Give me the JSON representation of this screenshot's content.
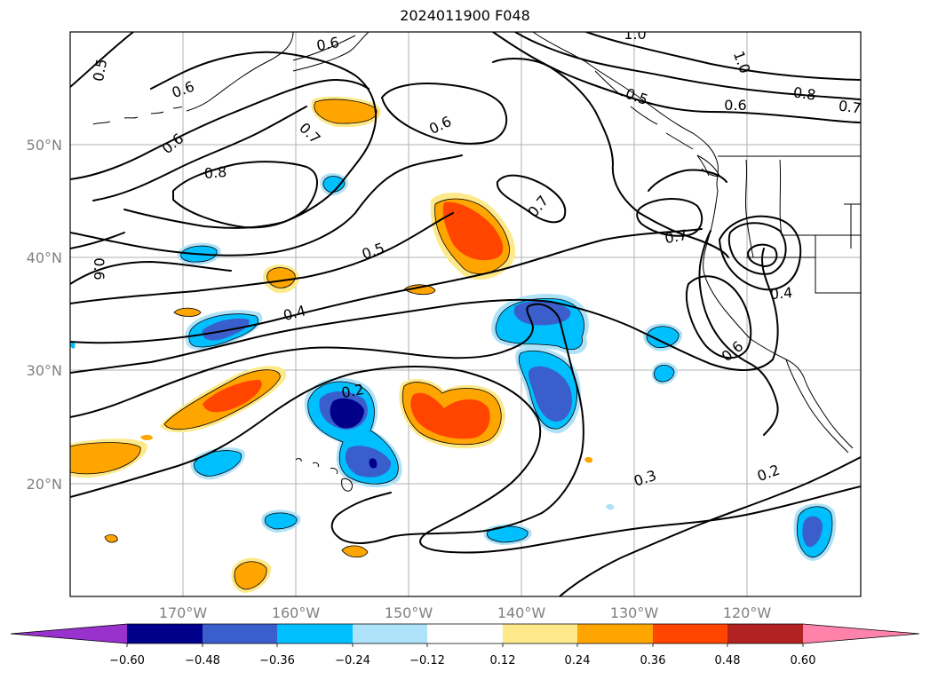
{
  "title": "2024011900 F048",
  "map": {
    "lat_labels": [
      "50°N",
      "40°N",
      "30°N",
      "20°N"
    ],
    "lon_labels": [
      "170°W",
      "160°W",
      "150°W",
      "140°W",
      "130°W",
      "120°W"
    ],
    "contour_labels": [
      "0.5",
      "0.6",
      "0.6",
      "1.0",
      "1.0",
      "0.6",
      "0.8",
      "0.7",
      "0.5",
      "0.6",
      "0.7",
      "0.6",
      "0.8",
      "0.7",
      "0.7",
      "0.6",
      "0.5",
      "0.4",
      "0.4",
      "0.6",
      "0.2",
      "0.3",
      "0.2"
    ]
  },
  "colorbar": {
    "ticks": [
      "−0.60",
      "−0.48",
      "−0.36",
      "−0.24",
      "−0.12",
      "0.12",
      "0.24",
      "0.36",
      "0.48",
      "0.60"
    ],
    "colors": {
      "under": "#9932cc",
      "n060": "#00008b",
      "n048": "#3a5fcd",
      "n036": "#00bfff",
      "n024": "#aee2f8",
      "zero": "#ffffff",
      "p012": "#fde98a",
      "p024": "#ffa500",
      "p036": "#ff4500",
      "p048": "#b22222",
      "over": "#ff82ab"
    }
  }
}
